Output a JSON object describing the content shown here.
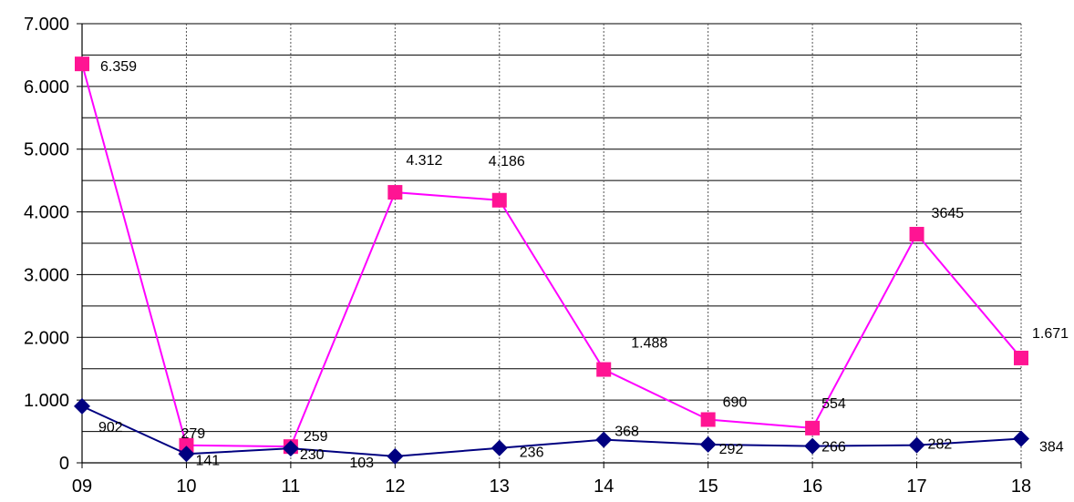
{
  "chart_data": {
    "type": "line",
    "categories": [
      "09",
      "10",
      "11",
      "12",
      "13",
      "14",
      "15",
      "16",
      "17",
      "18"
    ],
    "ylim": [
      0,
      7000
    ],
    "yticks": [
      0,
      1000,
      2000,
      3000,
      4000,
      5000,
      6000,
      7000
    ],
    "ytick_labels": [
      "0",
      "1.000",
      "2.000",
      "3.000",
      "4.000",
      "5.000",
      "6.000",
      "7.000"
    ],
    "grid": true,
    "series": [
      {
        "color": "#ff00ff",
        "marker_color": "#ff1493",
        "marker": "square",
        "values": [
          6359,
          279,
          259,
          4312,
          4186,
          1488,
          690,
          554,
          3645,
          1671
        ],
        "labels": [
          "6.359",
          "279",
          "259",
          "4.312",
          "4.186",
          "1.488",
          "690",
          "554",
          "3645",
          "1.671"
        ]
      },
      {
        "color": "#000080",
        "marker_color": "#000080",
        "marker": "diamond",
        "values": [
          902,
          141,
          230,
          103,
          236,
          368,
          292,
          266,
          282,
          384
        ],
        "labels": [
          "902",
          "141",
          "230",
          "103",
          "236",
          "368",
          "292",
          "266",
          "282",
          "384"
        ]
      }
    ]
  }
}
